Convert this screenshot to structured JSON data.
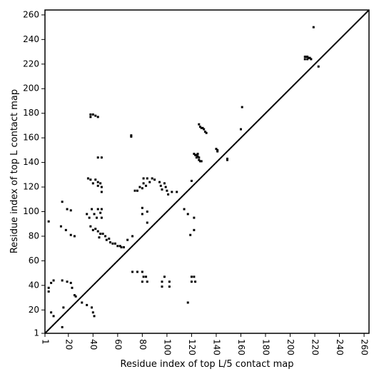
{
  "chart_data": {
    "type": "scatter",
    "xlabel": "Residue index of top L/5 contact map",
    "ylabel": "Residue index of top L contact map",
    "xlim": [
      1,
      264
    ],
    "ylim": [
      1,
      264
    ],
    "xticks": [
      1,
      20,
      40,
      60,
      80,
      100,
      120,
      140,
      160,
      180,
      200,
      220,
      240,
      260
    ],
    "yticks": [
      1,
      20,
      40,
      60,
      80,
      100,
      120,
      140,
      160,
      180,
      200,
      220,
      240,
      260
    ],
    "grid": false,
    "diagonal": true,
    "series": [
      {
        "color": "#000000",
        "x": [
          219,
          212,
          213,
          214,
          215,
          216,
          217,
          212,
          214,
          223,
          161,
          160,
          71,
          71,
          126,
          127,
          128,
          129,
          130,
          131,
          132,
          122,
          123,
          124,
          125,
          126,
          125,
          124,
          126,
          127,
          128,
          140,
          141,
          141,
          149,
          149,
          38,
          38,
          40,
          42,
          44,
          44,
          47,
          36,
          38,
          42,
          44,
          46,
          44,
          47,
          47,
          40,
          74,
          76,
          78,
          80,
          81,
          81,
          83,
          84,
          86,
          88,
          90,
          94,
          95,
          96,
          98,
          99,
          100,
          101,
          104,
          108,
          80,
          84,
          80,
          84,
          35,
          37,
          39,
          41,
          43,
          44,
          46,
          47,
          47,
          38,
          40,
          42,
          44,
          46,
          45,
          48,
          50,
          51,
          53,
          54,
          56,
          58,
          60,
          62,
          63,
          65,
          68,
          72,
          4,
          15,
          19,
          22,
          14,
          18,
          22,
          25,
          8,
          6,
          15,
          19,
          22,
          23,
          25,
          26,
          4,
          4,
          6,
          8,
          15,
          16,
          31,
          35,
          39,
          40,
          41,
          114,
          117,
          120,
          122,
          119,
          122,
          72,
          76,
          80,
          81,
          83,
          80,
          84,
          96,
          98,
          96,
          102,
          102,
          120,
          122,
          120,
          123,
          117
        ],
        "y": [
          250,
          226,
          226,
          226,
          225,
          225,
          224,
          224,
          224,
          218,
          185,
          167,
          161,
          162,
          171,
          169,
          168,
          168,
          167,
          165,
          164,
          147,
          146,
          146,
          145,
          144,
          147,
          144,
          142,
          141,
          141,
          151,
          150,
          149,
          143,
          142,
          179,
          177,
          179,
          178,
          177,
          144,
          144,
          127,
          126,
          126,
          124,
          123,
          121,
          120,
          116,
          123,
          117,
          117,
          120,
          119,
          123,
          127,
          121,
          127,
          124,
          127,
          126,
          124,
          121,
          118,
          123,
          120,
          117,
          114,
          116,
          116,
          103,
          100,
          98,
          91,
          98,
          95,
          102,
          98,
          95,
          102,
          99,
          102,
          95,
          88,
          85,
          86,
          84,
          82,
          79,
          82,
          80,
          77,
          78,
          75,
          74,
          74,
          72,
          72,
          71,
          71,
          77,
          80,
          92,
          108,
          102,
          101,
          88,
          85,
          81,
          80,
          44,
          42,
          44,
          43,
          42,
          38,
          32,
          31,
          38,
          35,
          18,
          15,
          6,
          22,
          26,
          24,
          22,
          18,
          15,
          102,
          98,
          125,
          95,
          81,
          85,
          51,
          51,
          51,
          47,
          47,
          43,
          43,
          43,
          47,
          39,
          43,
          39,
          43,
          47,
          47,
          43,
          26
        ]
      }
    ]
  }
}
